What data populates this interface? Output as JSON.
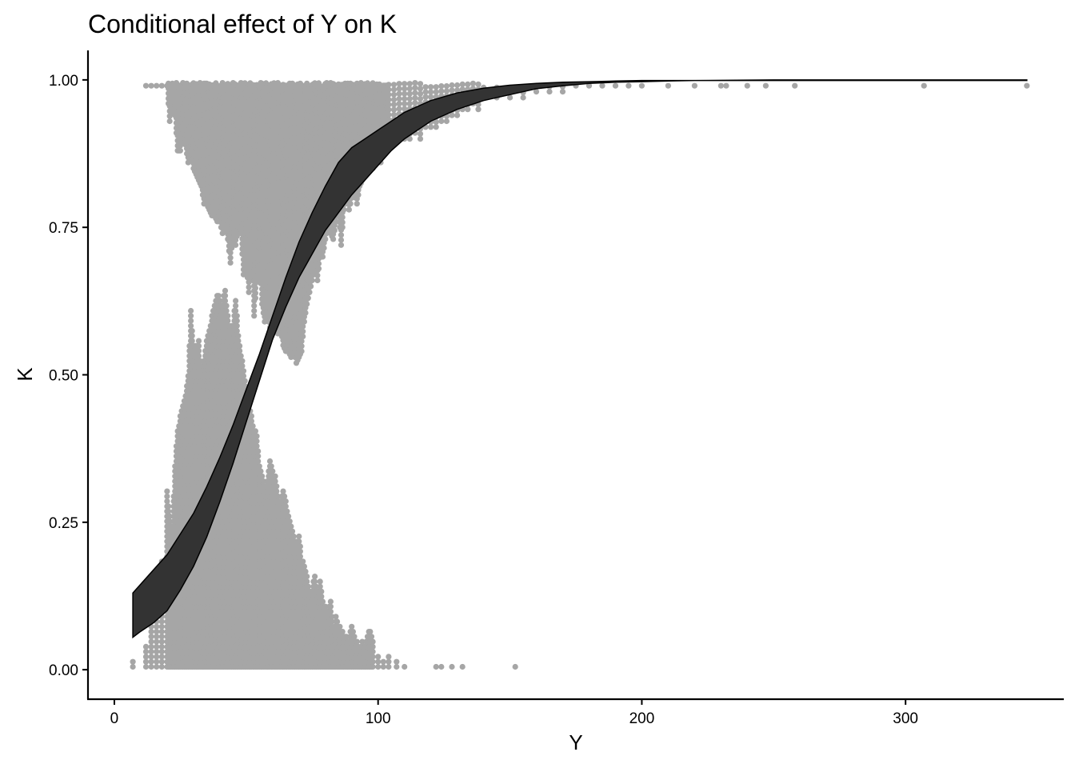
{
  "chart_data": {
    "type": "scatter",
    "title": "Conditional effect of Y on K",
    "xlabel": "Y",
    "ylabel": "K",
    "xlim": [
      -10,
      360
    ],
    "ylim": [
      -0.05,
      1.05
    ],
    "x_ticks": [
      {
        "value": 0,
        "label": "0"
      },
      {
        "value": 100,
        "label": "100"
      },
      {
        "value": 200,
        "label": "200"
      },
      {
        "value": 300,
        "label": "300"
      }
    ],
    "y_ticks": [
      {
        "value": 0,
        "label": "0.00"
      },
      {
        "value": 0.25,
        "label": "0.25"
      },
      {
        "value": 0.5,
        "label": "0.50"
      },
      {
        "value": 0.75,
        "label": "0.75"
      },
      {
        "value": 1,
        "label": "1.00"
      }
    ],
    "grid": false,
    "legend": "none",
    "colors": {
      "points": "#a6a6a6",
      "ribbon": "#333333",
      "line": "#000000"
    },
    "points_k1": {
      "description_of_extent": "vertical stacks of points descending from K=1.00 at each Y",
      "x": [
        12,
        14,
        16,
        18,
        20,
        21,
        22,
        23,
        24,
        25,
        26,
        27,
        28,
        29,
        30,
        31,
        32,
        33,
        34,
        35,
        36,
        37,
        38,
        39,
        40,
        41,
        42,
        43,
        44,
        45,
        46,
        47,
        48,
        49,
        50,
        51,
        52,
        53,
        54,
        55,
        56,
        57,
        58,
        59,
        60,
        61,
        62,
        63,
        64,
        65,
        66,
        67,
        68,
        69,
        70,
        71,
        72,
        73,
        74,
        75,
        76,
        77,
        78,
        79,
        80,
        81,
        82,
        83,
        84,
        85,
        86,
        87,
        88,
        89,
        90,
        91,
        92,
        93,
        94,
        95,
        96,
        97,
        98,
        99,
        100,
        101,
        102,
        103,
        104,
        106,
        108,
        110,
        112,
        114,
        116,
        118,
        120,
        122,
        124,
        126,
        128,
        130,
        132,
        134,
        136,
        138,
        140,
        145,
        150,
        155,
        160,
        165,
        170,
        175,
        180,
        185,
        190,
        195,
        200,
        210,
        220,
        230,
        232,
        240,
        247,
        258,
        307,
        346
      ],
      "k_min": [
        0.99,
        0.99,
        0.99,
        0.99,
        0.99,
        0.93,
        0.96,
        0.94,
        0.88,
        0.88,
        0.91,
        0.89,
        0.86,
        0.88,
        0.85,
        0.84,
        0.83,
        0.82,
        0.79,
        0.79,
        0.78,
        0.77,
        0.77,
        0.76,
        0.76,
        0.74,
        0.76,
        0.73,
        0.69,
        0.74,
        0.72,
        0.75,
        0.74,
        0.67,
        0.69,
        0.64,
        0.72,
        0.6,
        0.66,
        0.69,
        0.62,
        0.59,
        0.6,
        0.58,
        0.59,
        0.6,
        0.57,
        0.58,
        0.55,
        0.54,
        0.54,
        0.53,
        0.54,
        0.52,
        0.53,
        0.54,
        0.59,
        0.62,
        0.64,
        0.66,
        0.68,
        0.66,
        0.7,
        0.7,
        0.73,
        0.75,
        0.74,
        0.73,
        0.76,
        0.78,
        0.72,
        0.78,
        0.8,
        0.78,
        0.8,
        0.81,
        0.79,
        0.82,
        0.83,
        0.84,
        0.85,
        0.86,
        0.85,
        0.86,
        0.87,
        0.86,
        0.88,
        0.88,
        0.89,
        0.89,
        0.9,
        0.9,
        0.9,
        0.91,
        0.9,
        0.92,
        0.92,
        0.92,
        0.93,
        0.93,
        0.94,
        0.94,
        0.95,
        0.95,
        0.96,
        0.95,
        0.97,
        0.97,
        0.97,
        0.97,
        0.98,
        0.98,
        0.98,
        0.99,
        0.99,
        0.99,
        0.99,
        0.99,
        0.99,
        0.99,
        0.99,
        0.99,
        0.99,
        0.99,
        0.99,
        0.99,
        0.99,
        0.99
      ]
    },
    "points_k0": {
      "description_of_extent": "vertical stacks of points rising from K=0.00 at each Y",
      "x": [
        7,
        12,
        14,
        16,
        18,
        20,
        21,
        22,
        23,
        24,
        25,
        26,
        27,
        28,
        29,
        30,
        31,
        32,
        33,
        34,
        35,
        36,
        37,
        38,
        39,
        40,
        41,
        42,
        43,
        44,
        45,
        46,
        47,
        48,
        49,
        50,
        51,
        52,
        53,
        54,
        55,
        56,
        57,
        58,
        59,
        60,
        61,
        62,
        63,
        64,
        65,
        66,
        67,
        68,
        69,
        70,
        71,
        72,
        73,
        74,
        75,
        76,
        77,
        78,
        79,
        80,
        81,
        82,
        83,
        84,
        85,
        86,
        87,
        88,
        89,
        90,
        91,
        92,
        93,
        94,
        95,
        96,
        97,
        98,
        100,
        102,
        104,
        107,
        110,
        122,
        124,
        128,
        132,
        152
      ],
      "k_max": [
        0.02,
        0.04,
        0.12,
        0.16,
        0.19,
        0.31,
        0.26,
        0.24,
        0.35,
        0.41,
        0.43,
        0.45,
        0.47,
        0.5,
        0.61,
        0.55,
        0.55,
        0.56,
        0.5,
        0.53,
        0.56,
        0.58,
        0.6,
        0.62,
        0.64,
        0.63,
        0.62,
        0.65,
        0.6,
        0.58,
        0.59,
        0.63,
        0.57,
        0.54,
        0.51,
        0.47,
        0.45,
        0.43,
        0.41,
        0.4,
        0.35,
        0.33,
        0.31,
        0.32,
        0.36,
        0.34,
        0.33,
        0.3,
        0.28,
        0.31,
        0.29,
        0.26,
        0.25,
        0.23,
        0.21,
        0.23,
        0.19,
        0.18,
        0.16,
        0.13,
        0.14,
        0.16,
        0.13,
        0.15,
        0.12,
        0.11,
        0.1,
        0.12,
        0.07,
        0.09,
        0.08,
        0.07,
        0.06,
        0.06,
        0.05,
        0.08,
        0.06,
        0.05,
        0.03,
        0.05,
        0.04,
        0.06,
        0.07,
        0.05,
        0.03,
        0.02,
        0.03,
        0.02,
        0.01,
        0.01,
        0.01,
        0.01,
        0.01,
        0.01
      ]
    },
    "ribbon": {
      "x": [
        7,
        10,
        15,
        20,
        25,
        30,
        35,
        40,
        45,
        50,
        55,
        60,
        65,
        70,
        75,
        80,
        85,
        90,
        95,
        100,
        105,
        110,
        115,
        120,
        130,
        140,
        150,
        160,
        170,
        180,
        190,
        200,
        210,
        220,
        250,
        300,
        346
      ],
      "lower": [
        0.055,
        0.065,
        0.08,
        0.1,
        0.135,
        0.175,
        0.225,
        0.285,
        0.35,
        0.42,
        0.49,
        0.56,
        0.615,
        0.665,
        0.705,
        0.745,
        0.775,
        0.805,
        0.83,
        0.855,
        0.88,
        0.9,
        0.915,
        0.93,
        0.95,
        0.965,
        0.975,
        0.985,
        0.99,
        0.994,
        0.996,
        0.997,
        0.998,
        0.999,
        0.999,
        0.999,
        0.999
      ],
      "upper": [
        0.13,
        0.145,
        0.17,
        0.195,
        0.23,
        0.265,
        0.31,
        0.36,
        0.415,
        0.475,
        0.535,
        0.6,
        0.665,
        0.725,
        0.775,
        0.82,
        0.86,
        0.885,
        0.9,
        0.915,
        0.93,
        0.945,
        0.955,
        0.965,
        0.978,
        0.986,
        0.991,
        0.994,
        0.996,
        0.997,
        0.998,
        0.999,
        0.999,
        0.999,
        1.0,
        1.0,
        1.0
      ]
    }
  }
}
